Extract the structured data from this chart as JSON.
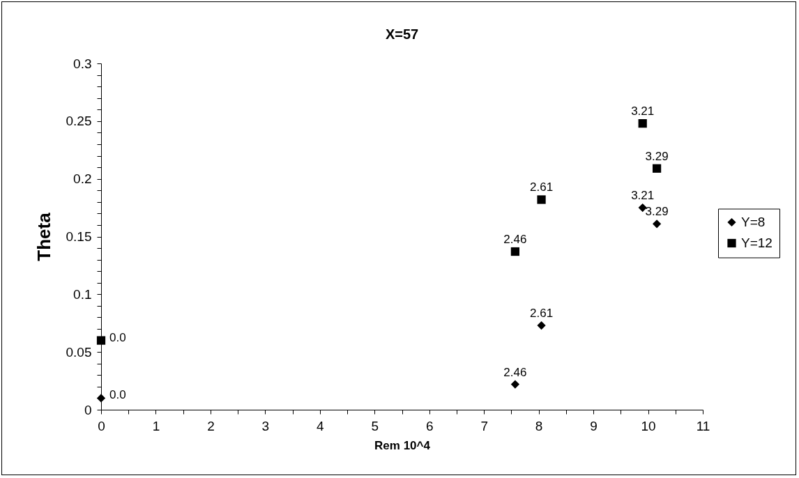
{
  "chart_data": {
    "type": "scatter",
    "title": "X=57",
    "xlabel": "Rem 10^4",
    "ylabel": "Theta",
    "xlim": [
      0,
      11
    ],
    "ylim": [
      0,
      0.3
    ],
    "xticks": [
      0,
      {
        "value": 0.5,
        "label": null
      },
      1,
      {
        "value": 1.5,
        "label": null
      },
      2,
      {
        "value": 2.5,
        "label": null
      },
      3,
      {
        "value": 3.5,
        "label": null
      },
      4,
      {
        "value": 4.5,
        "label": null
      },
      5,
      {
        "value": 5.5,
        "label": null
      },
      6,
      {
        "value": 6.5,
        "label": null
      },
      7,
      {
        "value": 7.5,
        "label": null
      },
      8,
      {
        "value": 8.5,
        "label": null
      },
      9,
      {
        "value": 9.5,
        "label": null
      },
      10,
      {
        "value": 10.5,
        "label": null
      },
      11
    ],
    "yticks": [
      0,
      {
        "value": 0.01,
        "label": null
      },
      {
        "value": 0.02,
        "label": null
      },
      {
        "value": 0.03,
        "label": null
      },
      {
        "value": 0.04,
        "label": null
      },
      0.05,
      {
        "value": 0.06,
        "label": null
      },
      {
        "value": 0.07,
        "label": null
      },
      {
        "value": 0.08,
        "label": null
      },
      {
        "value": 0.09,
        "label": null
      },
      0.1,
      {
        "value": 0.11,
        "label": null
      },
      {
        "value": 0.12,
        "label": null
      },
      {
        "value": 0.13,
        "label": null
      },
      {
        "value": 0.14,
        "label": null
      },
      0.15,
      {
        "value": 0.16,
        "label": null
      },
      {
        "value": 0.17,
        "label": null
      },
      {
        "value": 0.18,
        "label": null
      },
      {
        "value": 0.19,
        "label": null
      },
      0.2,
      {
        "value": 0.21,
        "label": null
      },
      {
        "value": 0.22,
        "label": null
      },
      {
        "value": 0.23,
        "label": null
      },
      {
        "value": 0.24,
        "label": null
      },
      0.25,
      {
        "value": 0.26,
        "label": null
      },
      {
        "value": 0.27,
        "label": null
      },
      {
        "value": 0.28,
        "label": null
      },
      {
        "value": 0.29,
        "label": null
      },
      0.3
    ],
    "grid": false,
    "legend": "right",
    "series": [
      {
        "name": "Y=8",
        "color": "#000000",
        "marker": "diamond",
        "x": [
          0,
          7.57,
          8.05,
          9.9,
          10.16
        ],
        "values": [
          0.01,
          0.022,
          0.073,
          0.175,
          0.161
        ]
      },
      {
        "name": "Y=12",
        "color": "#000000",
        "marker": "square",
        "x": [
          0,
          7.57,
          8.05,
          9.9,
          10.16
        ],
        "values": [
          0.06,
          0.137,
          0.182,
          0.248,
          0.209
        ]
      }
    ],
    "annotations": [
      {
        "text": "0.0",
        "x": 0,
        "y": 0.01
      },
      {
        "text": "2.46",
        "x": 7.57,
        "y": 0.022
      },
      {
        "text": "2.61",
        "x": 8.05,
        "y": 0.073
      },
      {
        "text": "3.21",
        "x": 9.9,
        "y": 0.175
      },
      {
        "text": "3.29",
        "x": 10.16,
        "y": 0.161
      },
      {
        "text": "0.0",
        "x": 0,
        "y": 0.06
      },
      {
        "text": "2.46",
        "x": 7.57,
        "y": 0.137
      },
      {
        "text": "2.61",
        "x": 8.05,
        "y": 0.182
      },
      {
        "text": "3.21",
        "x": 9.9,
        "y": 0.248
      },
      {
        "text": "3.29",
        "x": 10.16,
        "y": 0.209
      }
    ]
  }
}
